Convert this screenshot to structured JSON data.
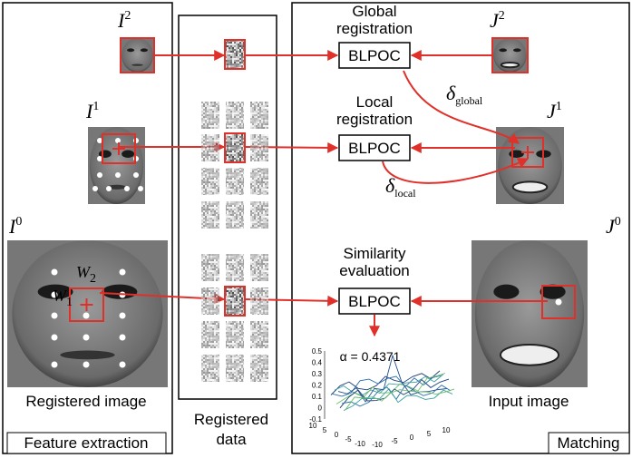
{
  "image_labels": [
    {
      "base": "I",
      "sup": "2"
    },
    {
      "base": "J",
      "sup": "2"
    },
    {
      "base": "I",
      "sup": "1"
    },
    {
      "base": "J",
      "sup": "1"
    },
    {
      "base": "I",
      "sup": "0"
    },
    {
      "base": "J",
      "sup": "0"
    }
  ],
  "window_labels": [
    {
      "base": "W",
      "sub": "1"
    },
    {
      "base": "W",
      "sub": "2"
    }
  ],
  "deltas": [
    {
      "base": "δ",
      "sub": "global"
    },
    {
      "base": "δ",
      "sub": "local"
    }
  ],
  "stages": [
    {
      "title": [
        "Global",
        "registration"
      ],
      "block": "BLPOC"
    },
    {
      "title": [
        "Local",
        "registration"
      ],
      "block": "BLPOC"
    },
    {
      "title": [
        "Similarity",
        "evaluation"
      ],
      "block": "BLPOC"
    }
  ],
  "panels": {
    "feature": "Feature extraction",
    "registered_image": "Registered image",
    "registered_data": [
      "Registered",
      "data"
    ],
    "input_image": "Input image",
    "matching": "Matching"
  },
  "plot": {
    "annotation": "α = 0.4371",
    "zticks": [
      0.5,
      0.4,
      0.3,
      0.2,
      0.1,
      0,
      -0.1
    ],
    "xticks": [
      10,
      5,
      0,
      -5,
      -10
    ],
    "yticks": [
      -10,
      -5,
      0,
      5,
      10
    ]
  }
}
